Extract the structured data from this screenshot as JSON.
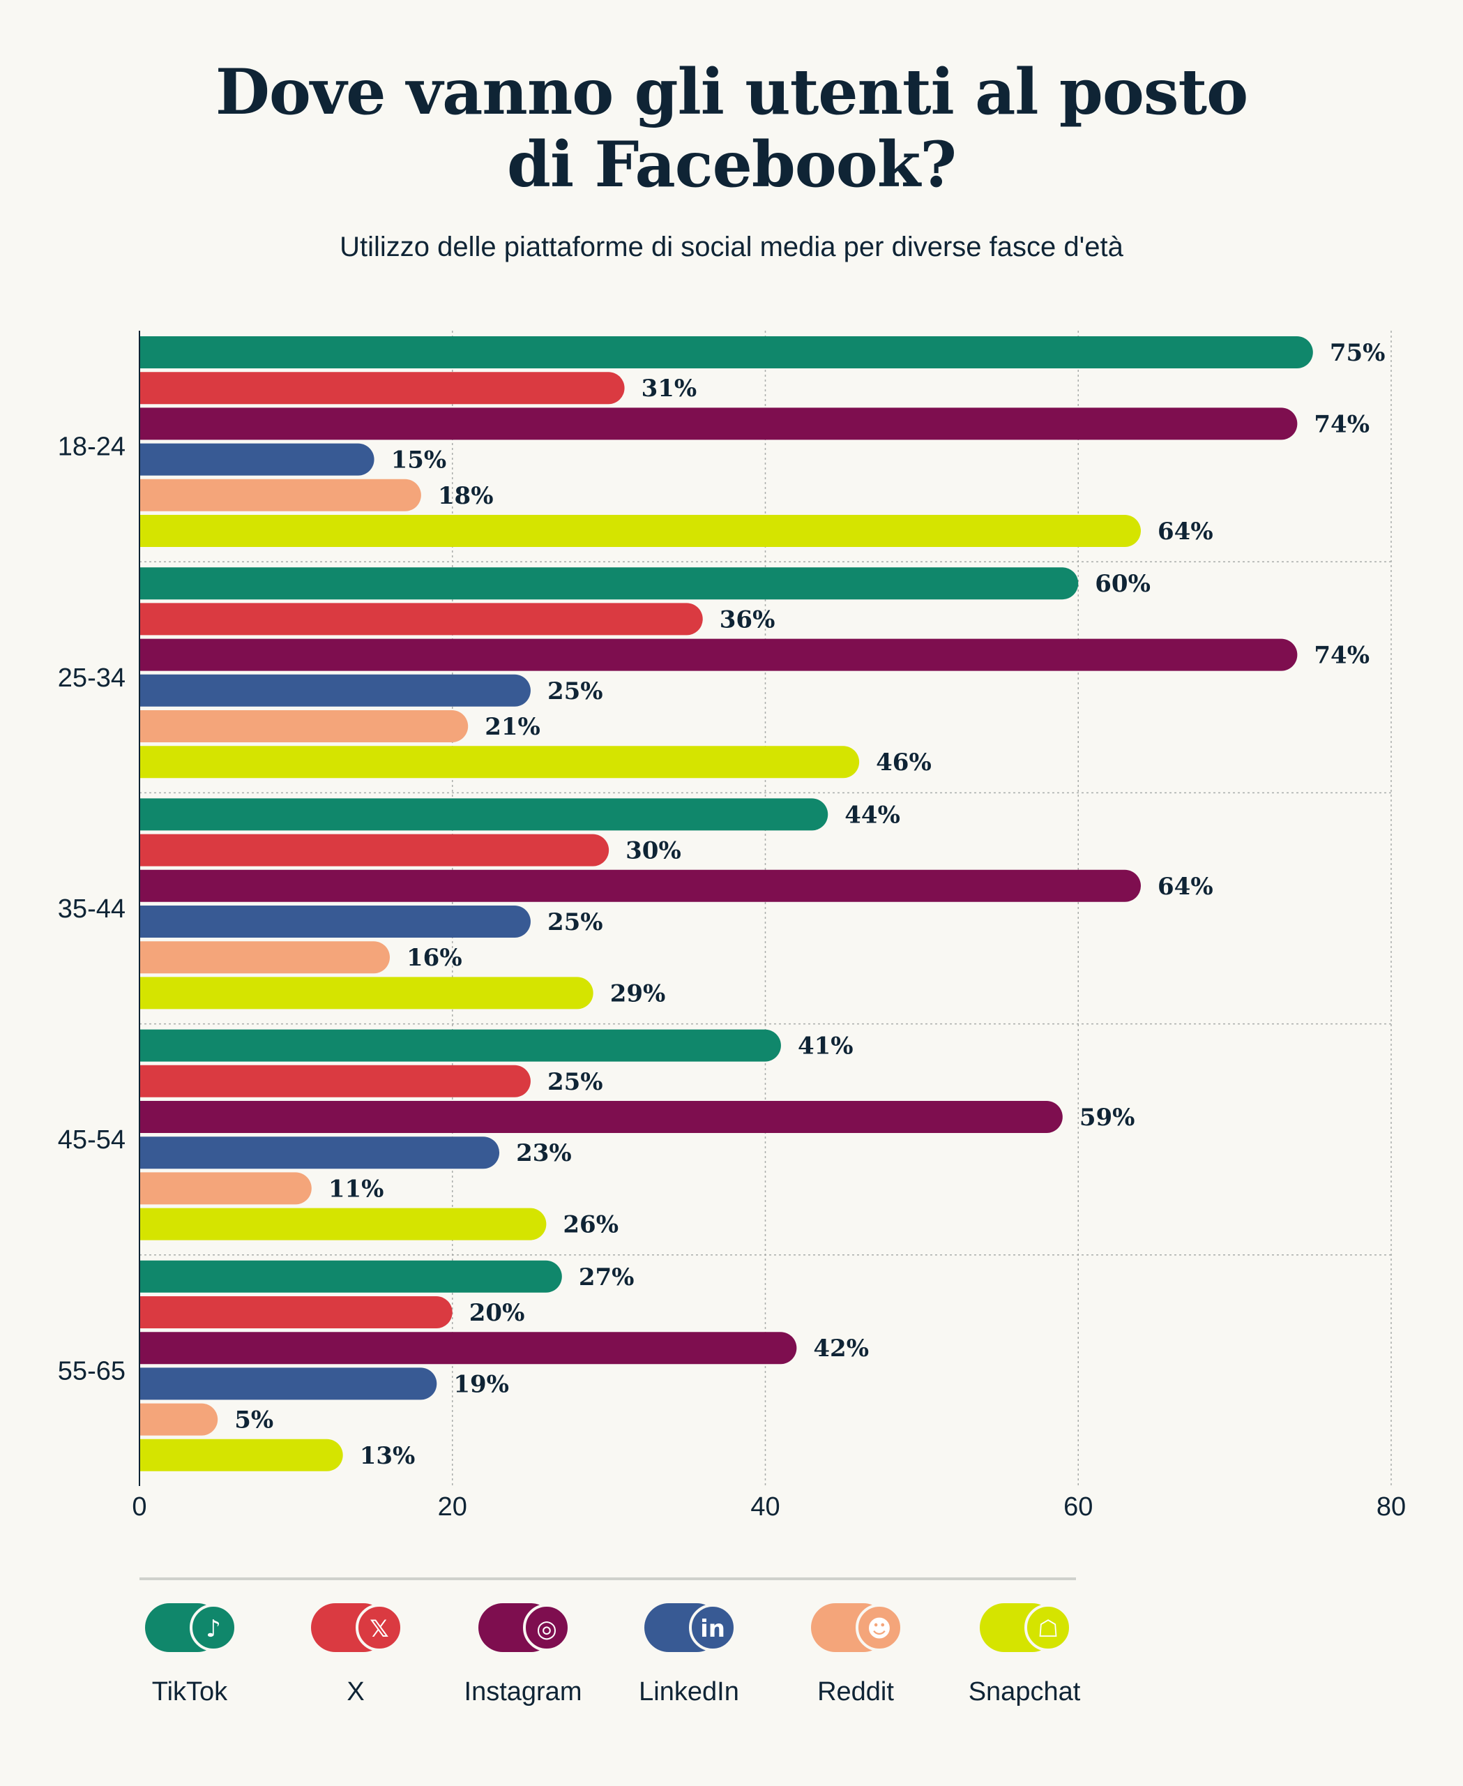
{
  "chart_data": {
    "type": "bar",
    "orientation": "horizontal",
    "title_lines": [
      "Dove vanno gli utenti al posto",
      "di Facebook?"
    ],
    "subtitle": "Utilizzo delle piattaforme di social media per diverse fasce d'età",
    "categories": [
      "18-24",
      "25-34",
      "35-44",
      "45-54",
      "55-65"
    ],
    "series": [
      {
        "name": "TikTok",
        "color": "#10876b",
        "icon": "tiktok-icon",
        "values": [
          75,
          60,
          44,
          41,
          27
        ]
      },
      {
        "name": "X",
        "color": "#da3a41",
        "icon": "x-logo-icon",
        "values": [
          31,
          36,
          30,
          25,
          20
        ]
      },
      {
        "name": "Instagram",
        "color": "#7e0e4f",
        "icon": "instagram-icon",
        "values": [
          74,
          74,
          64,
          59,
          42
        ]
      },
      {
        "name": "LinkedIn",
        "color": "#385a94",
        "icon": "linkedin-icon",
        "values": [
          15,
          25,
          25,
          23,
          19
        ]
      },
      {
        "name": "Reddit",
        "color": "#f4a57a",
        "icon": "reddit-icon",
        "values": [
          18,
          21,
          16,
          11,
          5
        ]
      },
      {
        "name": "Snapchat",
        "color": "#d5e400",
        "icon": "snapchat-icon",
        "values": [
          64,
          46,
          29,
          26,
          13
        ]
      }
    ],
    "value_suffix": "%",
    "xlim": [
      0,
      80
    ],
    "xticks": [
      0,
      20,
      40,
      60,
      80
    ],
    "grid": true,
    "legend_position": "bottom"
  }
}
